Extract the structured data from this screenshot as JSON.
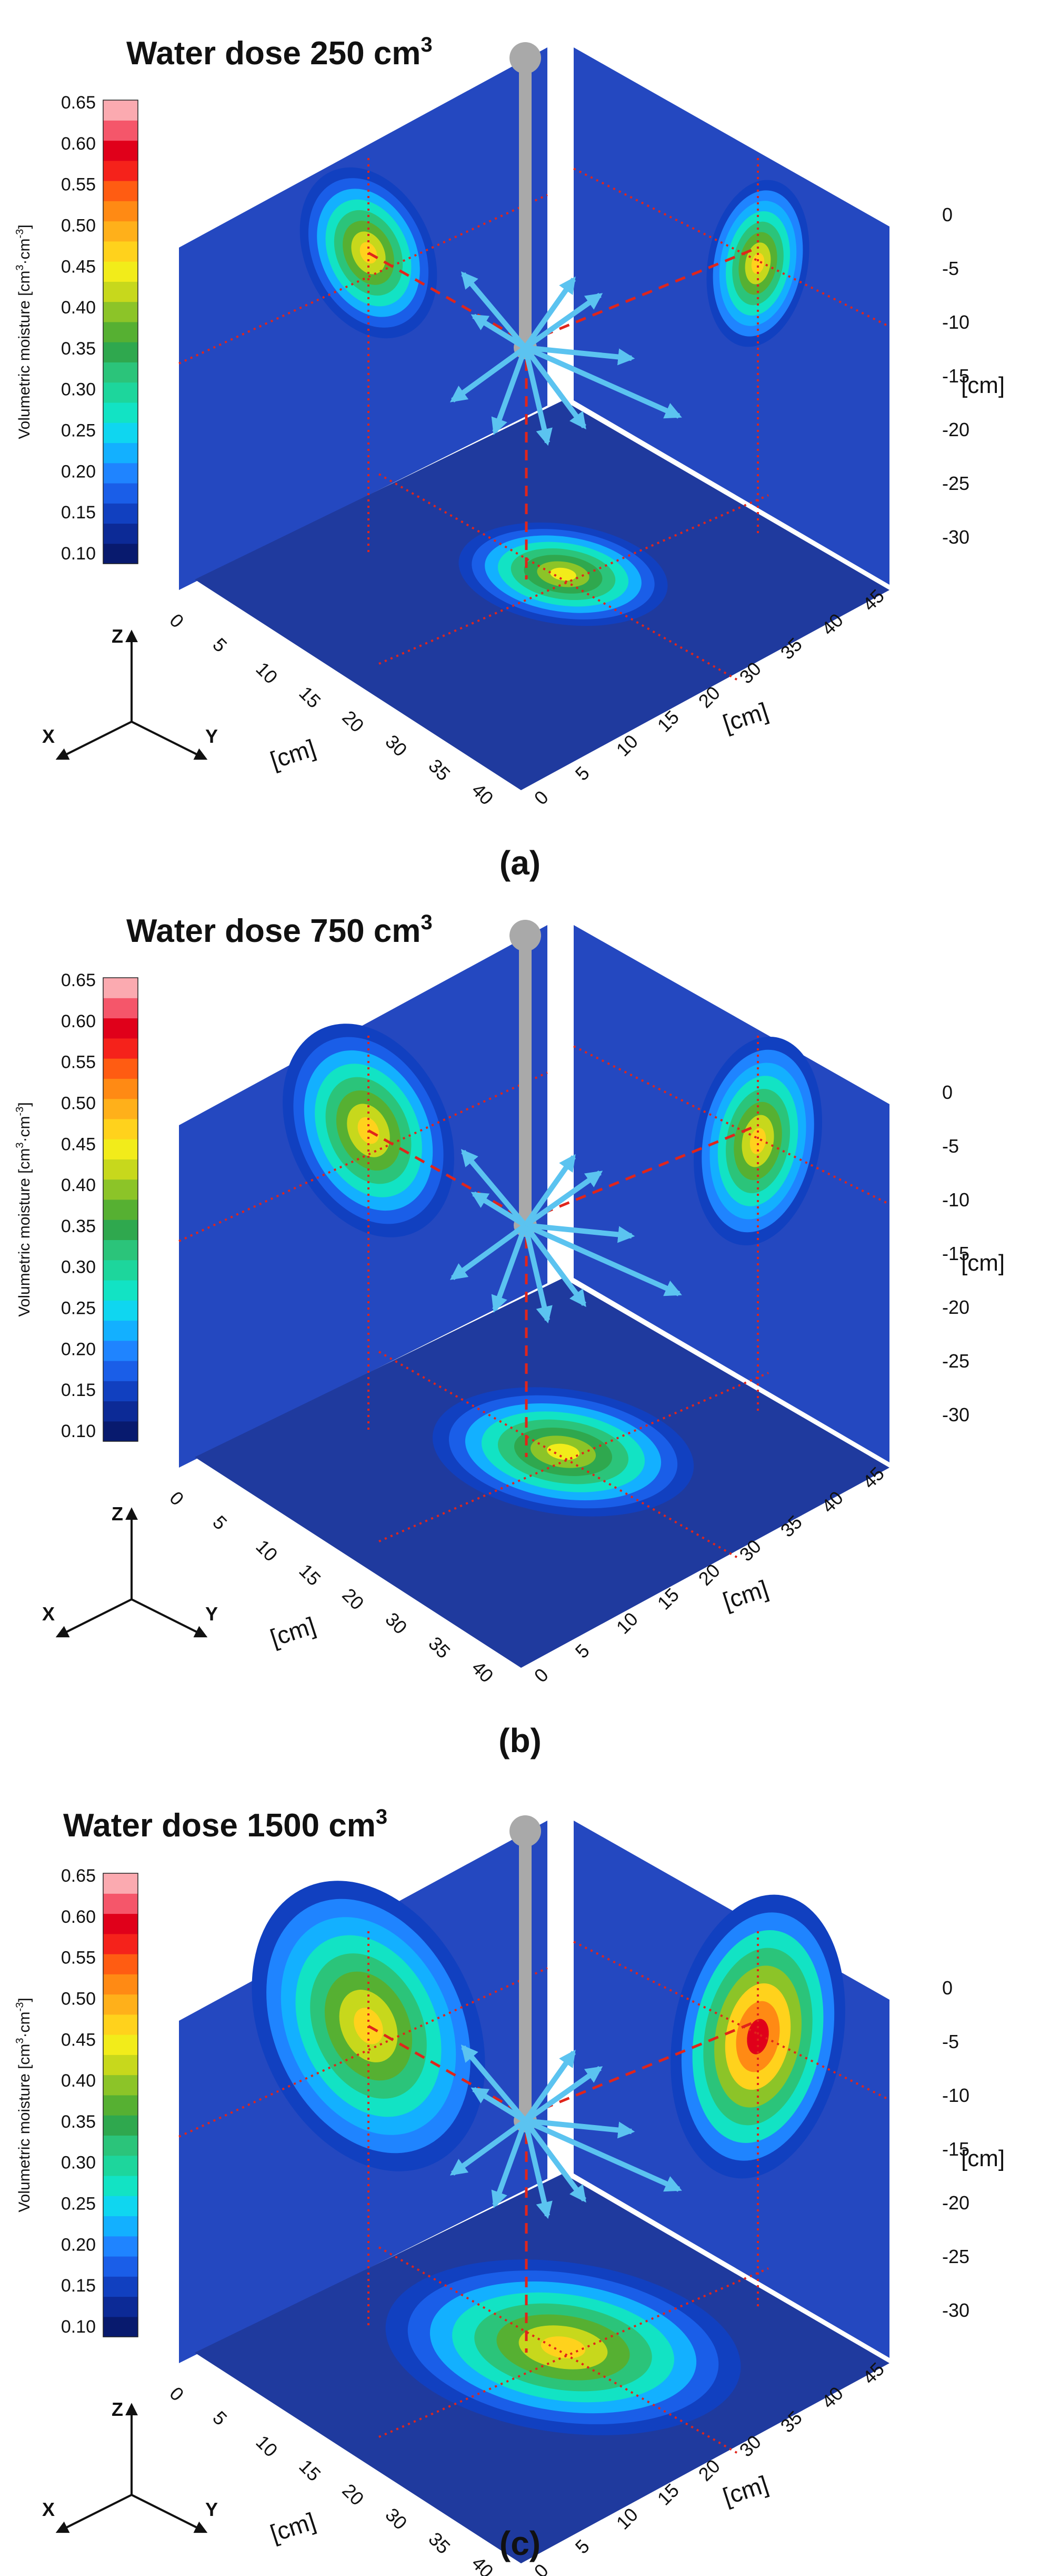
{
  "colors": {
    "floor": "#1f3a9e",
    "wall": "#2448c0",
    "gap": "#ffffff",
    "probe": "#a9a9a9",
    "arrow": "#5bc3f0",
    "guide": "#e0251b",
    "scale": [
      "#081a6e",
      "#0c2a96",
      "#1140c0",
      "#1a5ee8",
      "#1f84ff",
      "#13b0ff",
      "#0fd6f0",
      "#12e3c4",
      "#1dd69c",
      "#2bc47a",
      "#2fa84e",
      "#56b032",
      "#8cc428",
      "#c7d81c",
      "#f2ec1a",
      "#ffd21c",
      "#ffb01a",
      "#ff8a14",
      "#ff5c12",
      "#f5221b",
      "#e0001a",
      "#f5566a",
      "#fbaab0"
    ]
  },
  "panels": [
    {
      "id": "a",
      "title": "Water dose 250 cm",
      "title_sup": "3",
      "caption": "(a)",
      "chart_data": {
        "type": "heatmap",
        "quantity": "Volumetric moisture",
        "unit": "cm³·cm⁻³",
        "water_dose_cm3": 250,
        "color_range": [
          0.1,
          0.65
        ],
        "xz_wall_peak": 0.47,
        "yz_wall_peak": 0.48,
        "xy_floor_peak": 0.45,
        "x_cm": [
          0,
          40
        ],
        "y_cm": [
          0,
          45
        ],
        "z_cm": [
          -30,
          0
        ]
      }
    },
    {
      "id": "b",
      "title": "Water dose 750 cm",
      "title_sup": "3",
      "caption": "(b)",
      "chart_data": {
        "type": "heatmap",
        "quantity": "Volumetric moisture",
        "unit": "cm³·cm⁻³",
        "water_dose_cm3": 750,
        "color_range": [
          0.1,
          0.65
        ],
        "xz_wall_peak": 0.47,
        "yz_wall_peak": 0.48,
        "xy_floor_peak": 0.45,
        "x_cm": [
          0,
          40
        ],
        "y_cm": [
          0,
          45
        ],
        "z_cm": [
          -30,
          0
        ]
      }
    },
    {
      "id": "c",
      "title": "Water dose 1500 cm",
      "title_sup": "3",
      "caption": "(c)",
      "chart_data": {
        "type": "heatmap",
        "quantity": "Volumetric moisture",
        "unit": "cm³·cm⁻³",
        "water_dose_cm3": 1500,
        "color_range": [
          0.1,
          0.65
        ],
        "xz_wall_peak": 0.48,
        "yz_wall_peak": 0.6,
        "xy_floor_peak": 0.47,
        "x_cm": [
          0,
          40
        ],
        "y_cm": [
          0,
          45
        ],
        "z_cm": [
          -30,
          0
        ]
      }
    }
  ],
  "legend": {
    "title": "Volumetric moisture [cm",
    "title_sup1": "3",
    "title_mid": "·cm",
    "title_sup2": "-3",
    "title_end": "]",
    "ticks": [
      "0.65",
      "0.60",
      "0.55",
      "0.50",
      "0.45",
      "0.40",
      "0.35",
      "0.30",
      "0.25",
      "0.20",
      "0.15",
      "0.10"
    ]
  },
  "axes": {
    "depth_ticks": [
      "0",
      "-5",
      "-10",
      "-15",
      "-20",
      "-25",
      "-30"
    ],
    "depth_unit": "[cm]",
    "x_ticks": [
      "0",
      "5",
      "10",
      "15",
      "20",
      "30",
      "35",
      "40"
    ],
    "y_ticks": [
      "0",
      "5",
      "10",
      "15",
      "20",
      "30",
      "35",
      "40",
      "45"
    ],
    "x_unit": "[cm]",
    "y_unit": "[cm]",
    "triad": [
      "Z",
      "X",
      "Y"
    ]
  }
}
